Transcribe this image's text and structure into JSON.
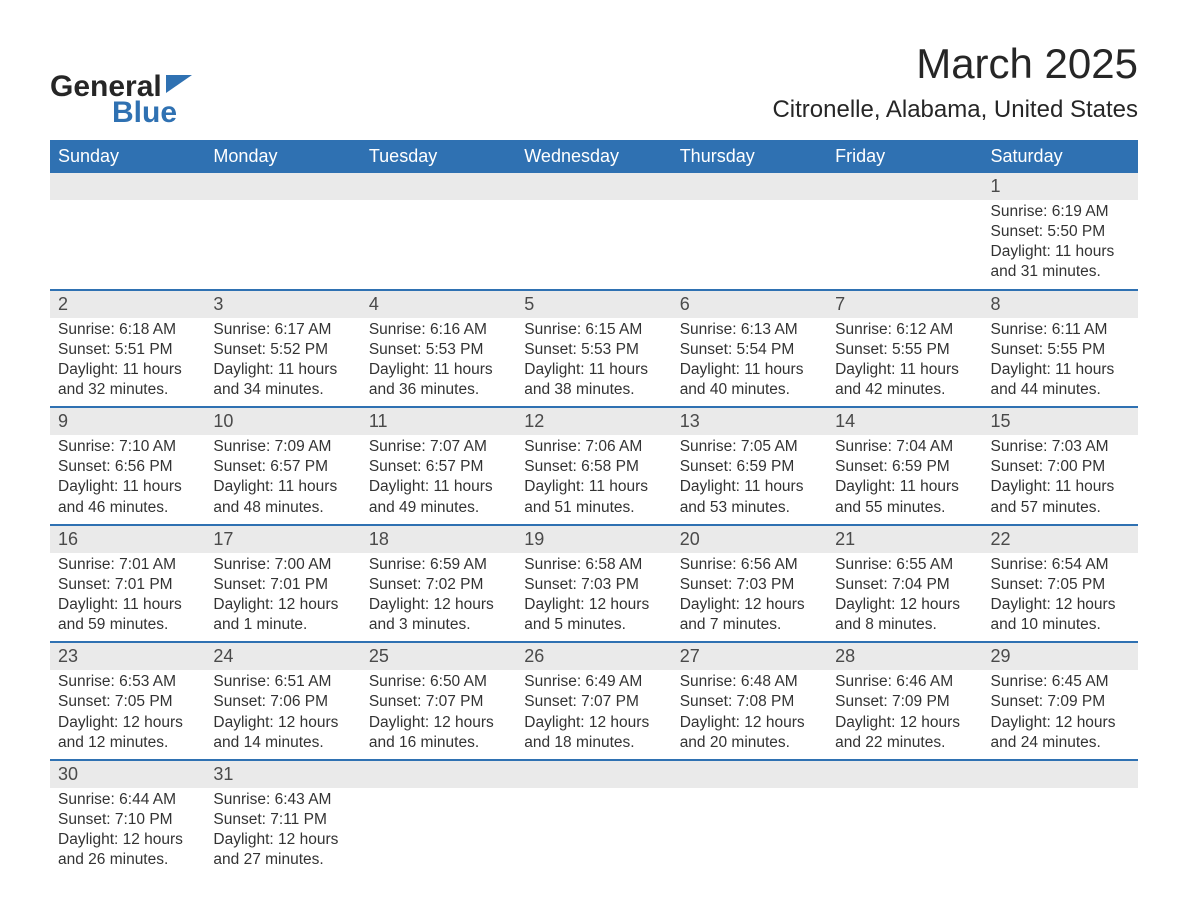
{
  "brand": {
    "word1": "General",
    "word2": "Blue"
  },
  "title": "March 2025",
  "location": "Citronelle, Alabama, United States",
  "colors": {
    "header_bg": "#2f71b2",
    "header_text": "#ffffff",
    "daynum_bg": "#eaeaea",
    "row_border": "#2f71b2",
    "body_text": "#333333",
    "logo_blue": "#2f71b2",
    "logo_dark": "#262626"
  },
  "typography": {
    "title_fontsize": 42,
    "location_fontsize": 24,
    "header_fontsize": 18,
    "daynum_fontsize": 18,
    "cell_fontsize": 15.5
  },
  "layout": {
    "columns": 7,
    "weeks": 6,
    "start_weekday": "Sunday"
  },
  "days_of_week": [
    "Sunday",
    "Monday",
    "Tuesday",
    "Wednesday",
    "Thursday",
    "Friday",
    "Saturday"
  ],
  "label_prefixes": {
    "sunrise": "Sunrise: ",
    "sunset": "Sunset: ",
    "daylight": "Daylight: "
  },
  "weeks": [
    [
      null,
      null,
      null,
      null,
      null,
      null,
      {
        "n": "1",
        "sunrise": "6:19 AM",
        "sunset": "5:50 PM",
        "daylight": "11 hours and 31 minutes."
      }
    ],
    [
      {
        "n": "2",
        "sunrise": "6:18 AM",
        "sunset": "5:51 PM",
        "daylight": "11 hours and 32 minutes."
      },
      {
        "n": "3",
        "sunrise": "6:17 AM",
        "sunset": "5:52 PM",
        "daylight": "11 hours and 34 minutes."
      },
      {
        "n": "4",
        "sunrise": "6:16 AM",
        "sunset": "5:53 PM",
        "daylight": "11 hours and 36 minutes."
      },
      {
        "n": "5",
        "sunrise": "6:15 AM",
        "sunset": "5:53 PM",
        "daylight": "11 hours and 38 minutes."
      },
      {
        "n": "6",
        "sunrise": "6:13 AM",
        "sunset": "5:54 PM",
        "daylight": "11 hours and 40 minutes."
      },
      {
        "n": "7",
        "sunrise": "6:12 AM",
        "sunset": "5:55 PM",
        "daylight": "11 hours and 42 minutes."
      },
      {
        "n": "8",
        "sunrise": "6:11 AM",
        "sunset": "5:55 PM",
        "daylight": "11 hours and 44 minutes."
      }
    ],
    [
      {
        "n": "9",
        "sunrise": "7:10 AM",
        "sunset": "6:56 PM",
        "daylight": "11 hours and 46 minutes."
      },
      {
        "n": "10",
        "sunrise": "7:09 AM",
        "sunset": "6:57 PM",
        "daylight": "11 hours and 48 minutes."
      },
      {
        "n": "11",
        "sunrise": "7:07 AM",
        "sunset": "6:57 PM",
        "daylight": "11 hours and 49 minutes."
      },
      {
        "n": "12",
        "sunrise": "7:06 AM",
        "sunset": "6:58 PM",
        "daylight": "11 hours and 51 minutes."
      },
      {
        "n": "13",
        "sunrise": "7:05 AM",
        "sunset": "6:59 PM",
        "daylight": "11 hours and 53 minutes."
      },
      {
        "n": "14",
        "sunrise": "7:04 AM",
        "sunset": "6:59 PM",
        "daylight": "11 hours and 55 minutes."
      },
      {
        "n": "15",
        "sunrise": "7:03 AM",
        "sunset": "7:00 PM",
        "daylight": "11 hours and 57 minutes."
      }
    ],
    [
      {
        "n": "16",
        "sunrise": "7:01 AM",
        "sunset": "7:01 PM",
        "daylight": "11 hours and 59 minutes."
      },
      {
        "n": "17",
        "sunrise": "7:00 AM",
        "sunset": "7:01 PM",
        "daylight": "12 hours and 1 minute."
      },
      {
        "n": "18",
        "sunrise": "6:59 AM",
        "sunset": "7:02 PM",
        "daylight": "12 hours and 3 minutes."
      },
      {
        "n": "19",
        "sunrise": "6:58 AM",
        "sunset": "7:03 PM",
        "daylight": "12 hours and 5 minutes."
      },
      {
        "n": "20",
        "sunrise": "6:56 AM",
        "sunset": "7:03 PM",
        "daylight": "12 hours and 7 minutes."
      },
      {
        "n": "21",
        "sunrise": "6:55 AM",
        "sunset": "7:04 PM",
        "daylight": "12 hours and 8 minutes."
      },
      {
        "n": "22",
        "sunrise": "6:54 AM",
        "sunset": "7:05 PM",
        "daylight": "12 hours and 10 minutes."
      }
    ],
    [
      {
        "n": "23",
        "sunrise": "6:53 AM",
        "sunset": "7:05 PM",
        "daylight": "12 hours and 12 minutes."
      },
      {
        "n": "24",
        "sunrise": "6:51 AM",
        "sunset": "7:06 PM",
        "daylight": "12 hours and 14 minutes."
      },
      {
        "n": "25",
        "sunrise": "6:50 AM",
        "sunset": "7:07 PM",
        "daylight": "12 hours and 16 minutes."
      },
      {
        "n": "26",
        "sunrise": "6:49 AM",
        "sunset": "7:07 PM",
        "daylight": "12 hours and 18 minutes."
      },
      {
        "n": "27",
        "sunrise": "6:48 AM",
        "sunset": "7:08 PM",
        "daylight": "12 hours and 20 minutes."
      },
      {
        "n": "28",
        "sunrise": "6:46 AM",
        "sunset": "7:09 PM",
        "daylight": "12 hours and 22 minutes."
      },
      {
        "n": "29",
        "sunrise": "6:45 AM",
        "sunset": "7:09 PM",
        "daylight": "12 hours and 24 minutes."
      }
    ],
    [
      {
        "n": "30",
        "sunrise": "6:44 AM",
        "sunset": "7:10 PM",
        "daylight": "12 hours and 26 minutes."
      },
      {
        "n": "31",
        "sunrise": "6:43 AM",
        "sunset": "7:11 PM",
        "daylight": "12 hours and 27 minutes."
      },
      null,
      null,
      null,
      null,
      null
    ]
  ]
}
